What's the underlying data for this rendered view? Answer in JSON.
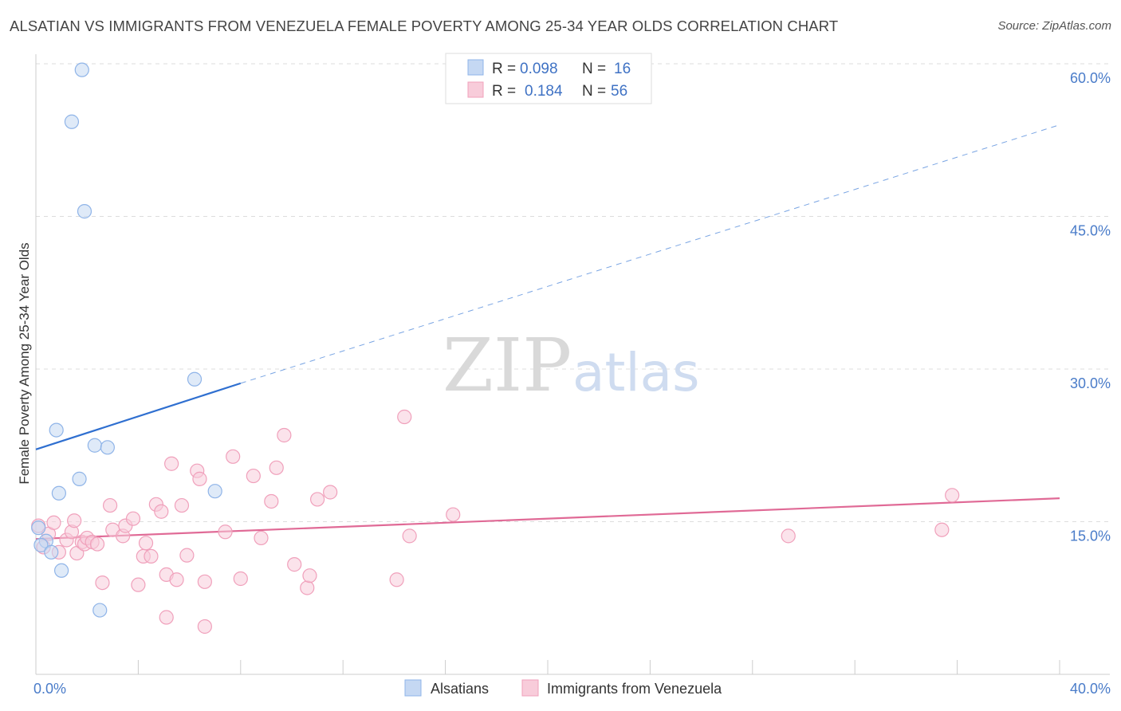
{
  "title": "ALSATIAN VS IMMIGRANTS FROM VENEZUELA FEMALE POVERTY AMONG 25-34 YEAR OLDS CORRELATION CHART",
  "source": "Source: ZipAtlas.com",
  "watermark": {
    "zip": "ZIP",
    "atlas": "atlas"
  },
  "chart_data": {
    "type": "scatter",
    "title": "ALSATIAN VS IMMIGRANTS FROM VENEZUELA FEMALE POVERTY AMONG 25-34 YEAR OLDS CORRELATION CHART",
    "xlabel": "",
    "ylabel": "Female Poverty Among 25-34 Year Olds",
    "xlim": [
      0,
      40
    ],
    "ylim": [
      0,
      60
    ],
    "x_tick_labels": [
      "0.0%",
      "40.0%"
    ],
    "y_ticks": [
      15,
      30,
      45,
      60
    ],
    "y_tick_labels": [
      "15.0%",
      "30.0%",
      "45.0%",
      "60.0%"
    ],
    "grid": "horizontal dashed",
    "legend_position": "top-center",
    "legend": [
      {
        "r_label": "R =",
        "r_value": "0.098",
        "n_label": "N =",
        "n_value": "16"
      },
      {
        "r_label": "R =",
        "r_value": "0.184",
        "n_label": "N =",
        "n_value": "56"
      }
    ],
    "series": [
      {
        "name": "Alsatians",
        "color": "#8fb4e8",
        "fill": "#c5d8f3",
        "line_color": "#2f6fd0",
        "points": [
          [
            1.8,
            59.4
          ],
          [
            1.4,
            54.3
          ],
          [
            1.9,
            45.5
          ],
          [
            6.2,
            29.0
          ],
          [
            0.8,
            24.0
          ],
          [
            2.3,
            22.5
          ],
          [
            2.8,
            22.3
          ],
          [
            1.7,
            19.2
          ],
          [
            0.9,
            17.8
          ],
          [
            7.0,
            18.0
          ],
          [
            0.1,
            14.4
          ],
          [
            0.4,
            13.1
          ],
          [
            0.2,
            12.7
          ],
          [
            0.6,
            12.0
          ],
          [
            1.0,
            10.2
          ],
          [
            2.5,
            6.3
          ]
        ],
        "trend": {
          "x_start": 0,
          "y_start": 22.1,
          "x_solid_end": 8.0,
          "y_solid_end": 28.6,
          "x_end": 40,
          "y_end": 54.0
        }
      },
      {
        "name": "Immigrants from Venezuela",
        "color": "#f0a0bb",
        "fill": "#f8ccda",
        "line_color": "#e06a96",
        "points": [
          [
            0.1,
            14.6
          ],
          [
            0.3,
            12.5
          ],
          [
            0.5,
            13.8
          ],
          [
            0.7,
            14.9
          ],
          [
            0.9,
            12.0
          ],
          [
            1.2,
            13.2
          ],
          [
            1.4,
            14.0
          ],
          [
            1.5,
            15.1
          ],
          [
            1.6,
            11.9
          ],
          [
            1.8,
            13.0
          ],
          [
            1.9,
            12.8
          ],
          [
            2.0,
            13.4
          ],
          [
            2.2,
            13.0
          ],
          [
            2.4,
            12.8
          ],
          [
            2.6,
            9.0
          ],
          [
            2.9,
            16.6
          ],
          [
            3.0,
            14.2
          ],
          [
            3.4,
            13.6
          ],
          [
            3.5,
            14.6
          ],
          [
            3.8,
            15.3
          ],
          [
            4.0,
            8.8
          ],
          [
            4.2,
            11.6
          ],
          [
            4.3,
            12.9
          ],
          [
            4.5,
            11.6
          ],
          [
            4.7,
            16.7
          ],
          [
            4.9,
            16.0
          ],
          [
            5.1,
            9.8
          ],
          [
            5.3,
            20.7
          ],
          [
            5.5,
            9.3
          ],
          [
            5.7,
            16.6
          ],
          [
            5.9,
            11.7
          ],
          [
            6.3,
            20.0
          ],
          [
            6.4,
            19.2
          ],
          [
            6.6,
            4.7
          ],
          [
            6.6,
            9.1
          ],
          [
            7.4,
            14.0
          ],
          [
            7.7,
            21.4
          ],
          [
            8.0,
            9.4
          ],
          [
            8.5,
            19.5
          ],
          [
            8.8,
            13.4
          ],
          [
            9.2,
            17.0
          ],
          [
            9.4,
            20.3
          ],
          [
            9.7,
            23.5
          ],
          [
            10.1,
            10.8
          ],
          [
            10.6,
            8.5
          ],
          [
            10.7,
            9.7
          ],
          [
            11.0,
            17.2
          ],
          [
            11.5,
            17.9
          ],
          [
            14.1,
            9.3
          ],
          [
            14.4,
            25.3
          ],
          [
            14.6,
            13.6
          ],
          [
            16.3,
            15.7
          ],
          [
            29.4,
            13.6
          ],
          [
            35.4,
            14.2
          ],
          [
            35.8,
            17.6
          ],
          [
            5.1,
            5.6
          ]
        ],
        "trend": {
          "x_start": 0,
          "y_start": 13.3,
          "x_end": 40,
          "y_end": 17.3
        }
      }
    ]
  }
}
